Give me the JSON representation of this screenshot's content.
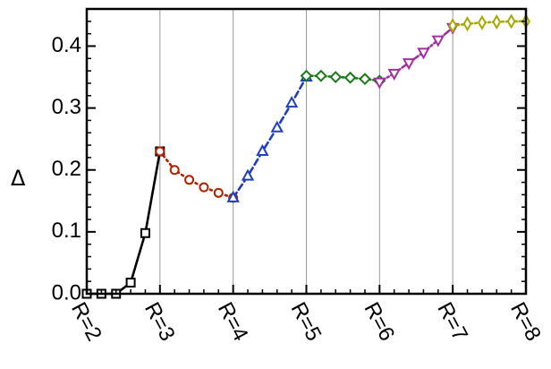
{
  "chart_data": {
    "type": "line",
    "title": "",
    "xlabel": "",
    "ylabel": "Δ",
    "ylim": [
      0.0,
      0.46
    ],
    "yticks": [
      "0.0",
      "0.1",
      "0.2",
      "0.3",
      "0.4"
    ],
    "ytick_values": [
      0.0,
      0.1,
      0.2,
      0.3,
      0.4
    ],
    "categories": [
      "R=2",
      "R=3",
      "R=4",
      "R=5",
      "R=6",
      "R=7",
      "R=8"
    ],
    "xlim": [
      2,
      8
    ],
    "grid": "vertical lines at R=3 through R=8",
    "series": [
      {
        "color": "#000000",
        "marker": "square",
        "line": "solid",
        "x": [
          2.0,
          2.2,
          2.4,
          2.6,
          2.8,
          3.0
        ],
        "y": [
          0.0,
          0.0,
          0.0,
          0.018,
          0.098,
          0.23
        ]
      },
      {
        "color": "#b22000",
        "marker": "circle",
        "line": "dotted",
        "x": [
          3.0,
          3.2,
          3.4,
          3.6,
          3.8,
          4.0
        ],
        "y": [
          0.23,
          0.2,
          0.184,
          0.172,
          0.163,
          0.155
        ]
      },
      {
        "color": "#1f3fbf",
        "marker": "triangle-up",
        "line": "dashed",
        "x": [
          4.0,
          4.2,
          4.4,
          4.6,
          4.8,
          5.0
        ],
        "y": [
          0.155,
          0.19,
          0.23,
          0.268,
          0.308,
          0.35
        ]
      },
      {
        "color": "#1a7a1a",
        "marker": "diamond",
        "line": "dash-dot",
        "x": [
          5.0,
          5.2,
          5.4,
          5.6,
          5.8,
          6.0
        ],
        "y": [
          0.352,
          0.352,
          0.35,
          0.349,
          0.347,
          0.344
        ]
      },
      {
        "color": "#a030a0",
        "marker": "triangle-down",
        "line": "dash-dot",
        "x": [
          6.0,
          6.2,
          6.4,
          6.6,
          6.8,
          7.0
        ],
        "y": [
          0.342,
          0.356,
          0.373,
          0.39,
          0.41,
          0.43
        ]
      },
      {
        "color": "#a8a800",
        "marker": "thin-diamond",
        "line": "dash-dot",
        "x": [
          7.0,
          7.2,
          7.4,
          7.6,
          7.8,
          8.0
        ],
        "y": [
          0.433,
          0.436,
          0.438,
          0.439,
          0.44,
          0.44
        ]
      }
    ]
  }
}
